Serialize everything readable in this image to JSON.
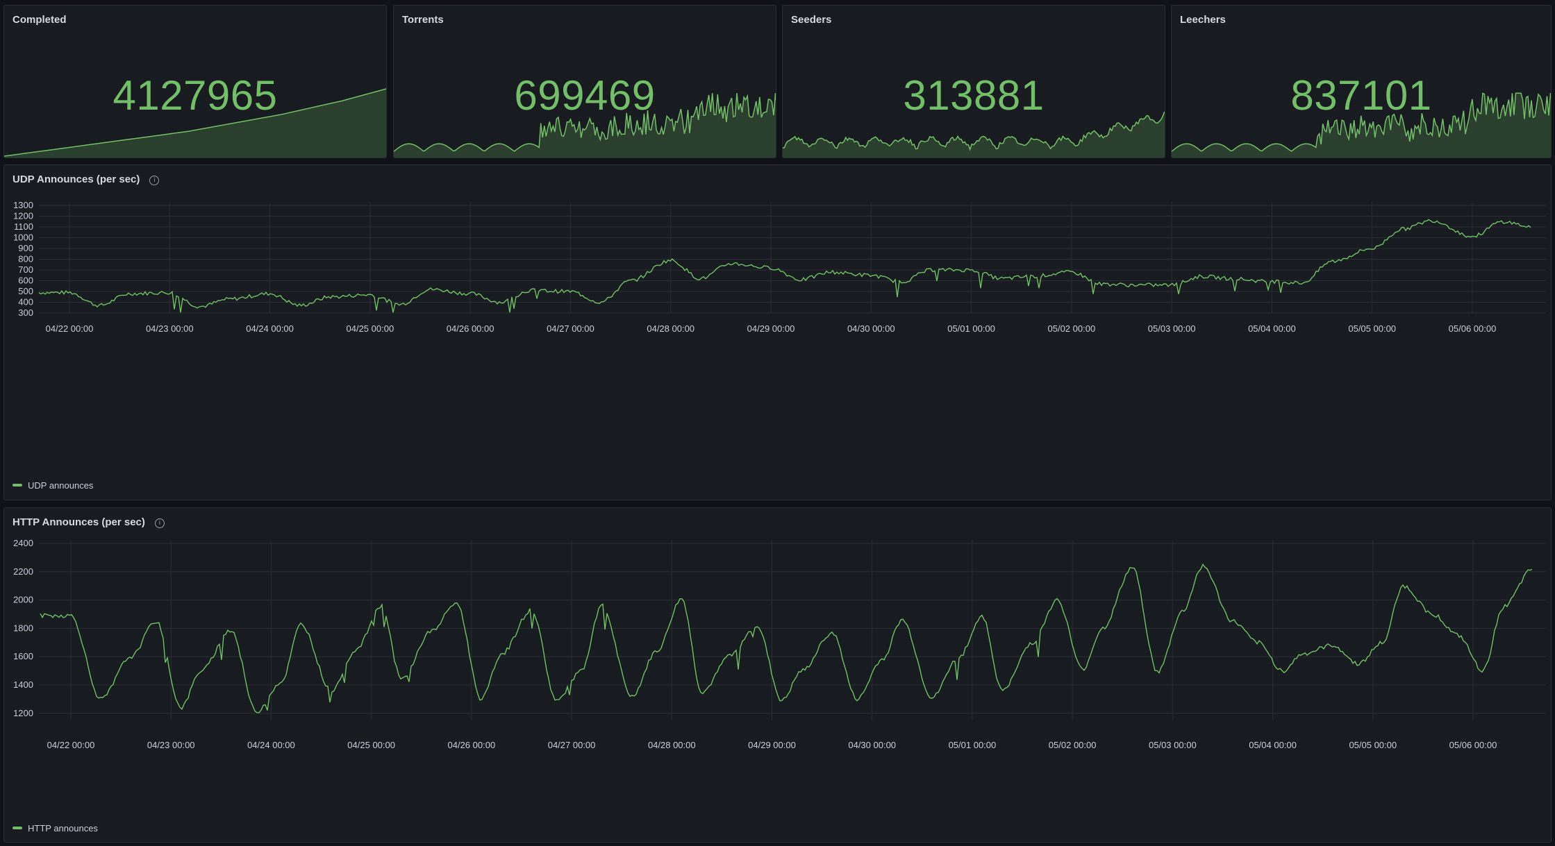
{
  "colors": {
    "accent": "#73bf69",
    "panel_bg": "#181b1f",
    "page_bg": "#111217"
  },
  "stats": [
    {
      "title": "Completed",
      "value": "4127965"
    },
    {
      "title": "Torrents",
      "value": "699469"
    },
    {
      "title": "Seeders",
      "value": "313881"
    },
    {
      "title": "Leechers",
      "value": "837101"
    }
  ],
  "udp_panel": {
    "title": "UDP Announces (per sec)",
    "info_icon": "info-circle-icon"
  },
  "http_panel": {
    "title": "HTTP Announces (per sec)",
    "info_icon": "info-circle-icon"
  },
  "chart_data": [
    {
      "type": "line",
      "title": "UDP Announces (per sec)",
      "x_tick_labels": [
        "04/22 00:00",
        "04/23 00:00",
        "04/24 00:00",
        "04/25 00:00",
        "04/26 00:00",
        "04/27 00:00",
        "04/28 00:00",
        "04/29 00:00",
        "04/30 00:00",
        "05/01 00:00",
        "05/02 00:00",
        "05/03 00:00",
        "05/04 00:00",
        "05/05 00:00",
        "05/06 00:00"
      ],
      "y_ticks": [
        300,
        400,
        500,
        600,
        700,
        800,
        900,
        1000,
        1100,
        1200,
        1300
      ],
      "ylim": [
        300,
        1300
      ],
      "grid": true,
      "legend_position": "bottom-left",
      "series": [
        {
          "name": "UDP announces",
          "x_days": [
            0,
            0.3,
            0.6,
            1,
            1.3,
            1.6,
            2,
            2.3,
            2.6,
            3,
            3.3,
            3.6,
            4,
            4.3,
            4.6,
            5,
            5.3,
            5.6,
            6,
            6.3,
            6.6,
            7,
            7.3,
            7.6,
            8,
            8.3,
            8.6,
            9,
            9.3,
            9.6,
            10,
            10.3,
            10.6,
            11,
            11.3,
            11.6,
            12,
            12.3,
            12.6,
            13,
            13.3,
            13.6,
            14,
            14.3,
            14.6
          ],
          "values": [
            490,
            370,
            480,
            490,
            360,
            430,
            480,
            370,
            450,
            470,
            380,
            520,
            480,
            400,
            510,
            500,
            400,
            600,
            790,
            620,
            760,
            720,
            610,
            680,
            650,
            590,
            700,
            700,
            620,
            640,
            680,
            570,
            560,
            560,
            640,
            620,
            590,
            580,
            780,
            900,
            1080,
            1160,
            1010,
            1150,
            1100
          ]
        }
      ]
    },
    {
      "type": "line",
      "title": "HTTP Announces (per sec)",
      "x_tick_labels": [
        "04/22 00:00",
        "04/23 00:00",
        "04/24 00:00",
        "04/25 00:00",
        "04/26 00:00",
        "04/27 00:00",
        "04/28 00:00",
        "04/29 00:00",
        "04/30 00:00",
        "05/01 00:00",
        "05/02 00:00",
        "05/03 00:00",
        "05/04 00:00",
        "05/05 00:00",
        "05/06 00:00"
      ],
      "y_ticks": [
        1200,
        1400,
        1600,
        1800,
        2000,
        2200,
        2400
      ],
      "ylim": [
        1150,
        2400
      ],
      "grid": true,
      "legend_position": "bottom-left",
      "series": [
        {
          "name": "HTTP announces",
          "x_days": [
            0,
            0.3,
            0.6,
            0.85,
            1.1,
            1.3,
            1.6,
            1.85,
            2.1,
            2.3,
            2.6,
            2.85,
            3.1,
            3.3,
            3.6,
            3.85,
            4.1,
            4.3,
            4.6,
            4.85,
            5.1,
            5.3,
            5.6,
            5.85,
            6.1,
            6.3,
            6.6,
            6.85,
            7.1,
            7.3,
            7.6,
            7.85,
            8.1,
            8.3,
            8.6,
            8.85,
            9.1,
            9.3,
            9.6,
            9.85,
            10.1,
            10.3,
            10.6,
            10.85,
            11.1,
            11.3,
            11.6,
            11.85,
            12.1,
            12.3,
            12.6,
            12.85,
            13.1,
            13.3,
            13.6,
            13.85,
            14.1,
            14.3,
            14.6
          ],
          "values": [
            1890,
            1300,
            1600,
            1850,
            1240,
            1500,
            1790,
            1210,
            1420,
            1830,
            1360,
            1650,
            1960,
            1440,
            1780,
            1980,
            1300,
            1620,
            1930,
            1290,
            1500,
            1960,
            1320,
            1640,
            2010,
            1350,
            1620,
            1820,
            1290,
            1500,
            1770,
            1300,
            1580,
            1860,
            1310,
            1580,
            1880,
            1360,
            1700,
            2000,
            1510,
            1800,
            2230,
            1490,
            1920,
            2240,
            1850,
            1700,
            1500,
            1620,
            1680,
            1550,
            1700,
            2100,
            1900,
            1750,
            1500,
            1950,
            2220
          ]
        }
      ]
    }
  ],
  "sparklines": {
    "completed": [
      0.02,
      0.05,
      0.08,
      0.11,
      0.14,
      0.17,
      0.2,
      0.23,
      0.26,
      0.29,
      0.32,
      0.35,
      0.38,
      0.42,
      0.46,
      0.5,
      0.54,
      0.58,
      0.62,
      0.67,
      0.72,
      0.77,
      0.82,
      0.88,
      0.94,
      1.0
    ]
  }
}
